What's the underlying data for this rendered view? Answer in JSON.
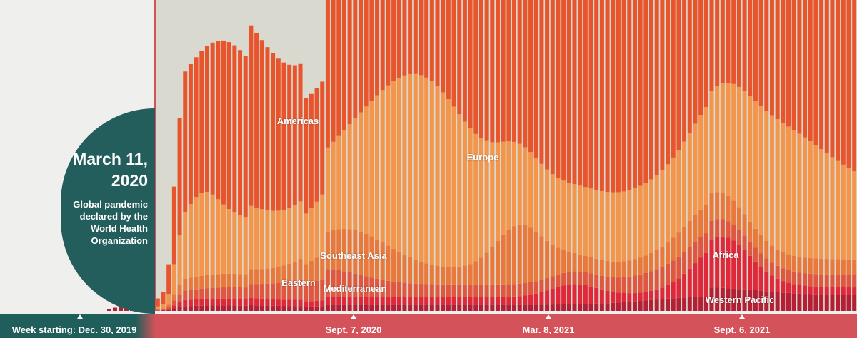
{
  "chart_data": {
    "type": "bar",
    "stacked": true,
    "weeks_total": 128,
    "ylim": [
      0,
      100
    ],
    "series": [
      {
        "name": "Western Pacific",
        "color": "#b51f34"
      },
      {
        "name": "Africa",
        "color": "#e0283a"
      },
      {
        "name": "Eastern Mediterranean",
        "color": "#e0563e"
      },
      {
        "name": "Southeast Asia",
        "color": "#e9783a"
      },
      {
        "name": "Europe",
        "color": "#f3954b"
      },
      {
        "name": "Americas",
        "color": "#e8552c"
      }
    ],
    "region_labels": [
      "Americas",
      "Europe",
      "Southeast Asia",
      "Eastern",
      "Mediterranean",
      "Africa",
      "Western Pacific"
    ],
    "x_ticks": [
      {
        "label": "Week starting: Dec. 30, 2019",
        "week": 0
      },
      {
        "label": "Sept. 7, 2020",
        "week": 36
      },
      {
        "label": "Mar. 8, 2021",
        "week": 62
      },
      {
        "label": "Sept. 6, 2021",
        "week": 88
      }
    ],
    "annotation": {
      "date": "March 11, 2020",
      "text": "Global pandemic declared by the World Health Organization"
    }
  }
}
